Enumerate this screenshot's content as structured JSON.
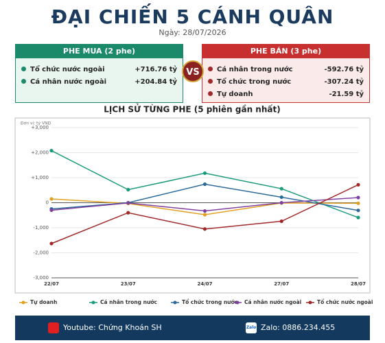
{
  "header": {
    "title": "ĐẠI CHIẾN 5 CÁNH QUÂN",
    "date": "Ngày: 28/07/2026"
  },
  "buy": {
    "title": "PHE MUA  (2 phe)",
    "rows": [
      [
        "Tổ chức nước ngoài",
        "+716.76 tỷ"
      ],
      [
        "Cá nhân nước ngoài",
        "+204.84 tỷ"
      ]
    ]
  },
  "vs": "VS",
  "sell": {
    "title": "PHE BÁN  (3 phe)",
    "rows": [
      [
        "Cá nhân trong nước",
        "-592.76 tỷ"
      ],
      [
        "Tổ chức trong nước",
        "-307.24 tỷ"
      ],
      [
        "Tự doanh",
        "-21.59 tỷ"
      ]
    ]
  },
  "chart_data": {
    "type": "line",
    "title": "LỊCH SỬ TỪNG PHE (5 phiên gần nhất)",
    "subtitle": "Đơn vị: tỷ VNĐ",
    "categories": [
      "22/07",
      "23/07",
      "24/07",
      "27/07",
      "28/07"
    ],
    "ylim": [
      -3000,
      3000
    ],
    "yticks": [
      {
        "value": 3000,
        "label": "+3,000"
      },
      {
        "value": 2000,
        "label": "+2,000"
      },
      {
        "value": 1000,
        "label": "+1,000"
      },
      0,
      {
        "value": -1000,
        "label": "-1,000"
      },
      {
        "value": -2000,
        "label": "-2,000"
      },
      {
        "value": -3000,
        "label": "-3,000"
      }
    ],
    "grid": true,
    "series": [
      {
        "name": "Tự doanh",
        "color": "#e0a020",
        "values": [
          150,
          -30,
          -480,
          -10,
          -21.59
        ]
      },
      {
        "name": "Cá nhân trong nước",
        "color": "#1a9a7a",
        "values": [
          2080,
          520,
          1180,
          560,
          -592.76
        ]
      },
      {
        "name": "Tổ chức trong nước",
        "color": "#2a6a9a",
        "values": [
          -250,
          0,
          740,
          220,
          -307.24
        ]
      },
      {
        "name": "Cá nhân nước ngoài",
        "color": "#8040a0",
        "values": [
          -300,
          -10,
          -330,
          0,
          204.84
        ]
      },
      {
        "name": "Tổ chức nước ngoài",
        "color": "#a02828",
        "values": [
          -1630,
          -400,
          -1050,
          -740,
          716.76
        ]
      }
    ]
  },
  "footer": {
    "youtube": "Youtube: Chứng Khoán SH",
    "zalo_icon": "Zalo",
    "zalo": "Zalo: 0886.234.455"
  }
}
